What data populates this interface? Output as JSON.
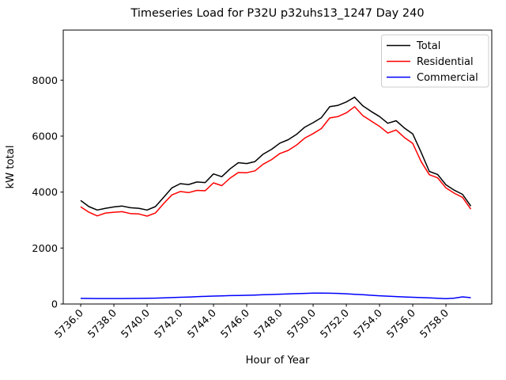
{
  "chart_data": {
    "type": "line",
    "title": "Timeseries Load for P32U p32uhs13_1247  Day 240",
    "xlabel": "Hour of Year",
    "ylabel": "kW total",
    "grid": false,
    "background": "#ffffff",
    "xlim": [
      5734.95,
      5760.76
    ],
    "ylim": [
      0,
      9790
    ],
    "x": [
      5736.0,
      5736.5,
      5737.0,
      5737.5,
      5738.0,
      5738.5,
      5739.0,
      5739.5,
      5740.0,
      5740.5,
      5741.0,
      5741.5,
      5742.0,
      5742.5,
      5743.0,
      5743.5,
      5744.0,
      5744.5,
      5745.0,
      5745.5,
      5746.0,
      5746.5,
      5747.0,
      5747.5,
      5748.0,
      5748.5,
      5749.0,
      5749.5,
      5750.0,
      5750.5,
      5751.0,
      5751.5,
      5752.0,
      5752.5,
      5753.0,
      5753.5,
      5754.0,
      5754.5,
      5755.0,
      5755.5,
      5756.0,
      5756.5,
      5757.0,
      5757.5,
      5758.0,
      5758.5,
      5759.0,
      5759.5
    ],
    "series": [
      {
        "name": "Total",
        "color": "#000000",
        "values": [
          3700,
          3480,
          3360,
          3420,
          3470,
          3500,
          3440,
          3420,
          3360,
          3480,
          3810,
          4150,
          4300,
          4270,
          4360,
          4340,
          4650,
          4550,
          4830,
          5050,
          5020,
          5090,
          5360,
          5530,
          5750,
          5870,
          6060,
          6320,
          6480,
          6660,
          7050,
          7100,
          7220,
          7390,
          7080,
          6880,
          6700,
          6460,
          6550,
          6290,
          6080,
          5430,
          4740,
          4630,
          4260,
          4070,
          3920,
          3500
        ]
      },
      {
        "name": "Residential",
        "color": "#ff0000",
        "values": [
          3475,
          3280,
          3150,
          3250,
          3280,
          3300,
          3230,
          3220,
          3140,
          3250,
          3590,
          3900,
          4020,
          3980,
          4060,
          4050,
          4330,
          4230,
          4500,
          4700,
          4690,
          4760,
          5000,
          5160,
          5380,
          5490,
          5680,
          5930,
          6090,
          6270,
          6650,
          6700,
          6830,
          7050,
          6730,
          6540,
          6350,
          6110,
          6220,
          5950,
          5740,
          5100,
          4620,
          4510,
          4150,
          3960,
          3810,
          3390
        ]
      },
      {
        "name": "Commercial",
        "color": "#0000ff",
        "values": [
          200,
          198,
          196,
          195,
          195,
          196,
          198,
          200,
          205,
          210,
          220,
          230,
          240,
          250,
          262,
          272,
          283,
          292,
          300,
          306,
          312,
          320,
          330,
          340,
          350,
          360,
          370,
          380,
          388,
          390,
          385,
          378,
          365,
          348,
          330,
          312,
          295,
          280,
          265,
          252,
          240,
          230,
          220,
          205,
          190,
          210,
          255,
          225
        ]
      }
    ],
    "xticks": {
      "values": [
        5736,
        5738,
        5740,
        5742,
        5744,
        5746,
        5748,
        5750,
        5752,
        5754,
        5756,
        5758
      ],
      "labels": [
        "5736.0",
        "5738.0",
        "5740.0",
        "5742.0",
        "5744.0",
        "5746.0",
        "5748.0",
        "5750.0",
        "5752.0",
        "5754.0",
        "5756.0",
        "5758.0"
      ]
    },
    "yticks": {
      "values": [
        0,
        2000,
        4000,
        6000,
        8000
      ],
      "labels": [
        "0",
        "2000",
        "4000",
        "6000",
        "8000"
      ]
    },
    "legend": {
      "position": "upper right",
      "entries": [
        "Total",
        "Residential",
        "Commercial"
      ]
    }
  }
}
